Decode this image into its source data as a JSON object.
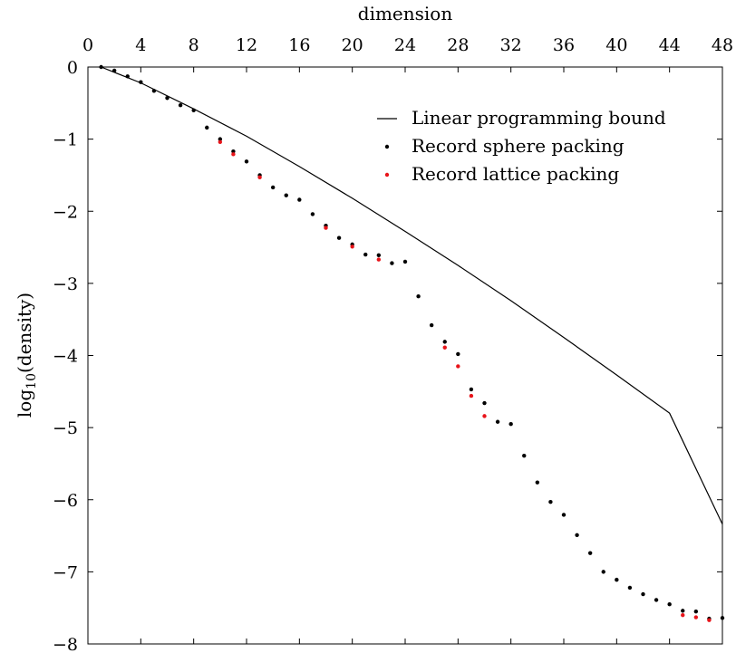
{
  "chart_data": {
    "type": "scatter",
    "xlabel": "dimension",
    "ylabel_main": "log",
    "ylabel_sub": "10",
    "ylabel_rest": "(density)",
    "xlim": [
      0,
      48
    ],
    "ylim": [
      -8,
      0
    ],
    "xticks": [
      0,
      4,
      8,
      12,
      16,
      20,
      24,
      28,
      32,
      36,
      40,
      44,
      48
    ],
    "yticks": [
      0,
      -1,
      -2,
      -3,
      -4,
      -5,
      -6,
      -7,
      -8
    ],
    "grid": false,
    "legend_position": "top-right",
    "series": [
      {
        "name": "Linear programming bound",
        "kind": "line",
        "color": "#000000",
        "points": [
          [
            1,
            0
          ],
          [
            4,
            -0.22
          ],
          [
            8,
            -0.58
          ],
          [
            12,
            -0.96
          ],
          [
            16,
            -1.38
          ],
          [
            20,
            -1.82
          ],
          [
            24,
            -2.28
          ],
          [
            28,
            -2.75
          ],
          [
            32,
            -3.24
          ],
          [
            36,
            -3.75
          ],
          [
            40,
            -4.27
          ],
          [
            44,
            -4.8
          ],
          [
            48,
            -6.34
          ]
        ]
      },
      {
        "name": "Record sphere packing",
        "kind": "scatter",
        "color": "#000000",
        "points": [
          [
            1,
            0
          ],
          [
            2,
            -0.05
          ],
          [
            3,
            -0.13
          ],
          [
            4,
            -0.21
          ],
          [
            5,
            -0.33
          ],
          [
            6,
            -0.43
          ],
          [
            7,
            -0.53
          ],
          [
            8,
            -0.6
          ],
          [
            9,
            -0.84
          ],
          [
            10,
            -1.0
          ],
          [
            11,
            -1.17
          ],
          [
            12,
            -1.31
          ],
          [
            13,
            -1.5
          ],
          [
            14,
            -1.67
          ],
          [
            15,
            -1.78
          ],
          [
            16,
            -1.84
          ],
          [
            17,
            -2.04
          ],
          [
            18,
            -2.2
          ],
          [
            19,
            -2.37
          ],
          [
            20,
            -2.46
          ],
          [
            21,
            -2.6
          ],
          [
            22,
            -2.61
          ],
          [
            23,
            -2.72
          ],
          [
            24,
            -2.7
          ],
          [
            25,
            -3.18
          ],
          [
            26,
            -3.58
          ],
          [
            27,
            -3.81
          ],
          [
            28,
            -3.98
          ],
          [
            29,
            -4.47
          ],
          [
            30,
            -4.66
          ],
          [
            31,
            -4.92
          ],
          [
            32,
            -4.95
          ],
          [
            33,
            -5.39
          ],
          [
            34,
            -5.76
          ],
          [
            35,
            -6.03
          ],
          [
            36,
            -6.21
          ],
          [
            37,
            -6.49
          ],
          [
            38,
            -6.74
          ],
          [
            39,
            -7.0
          ],
          [
            40,
            -7.11
          ],
          [
            41,
            -7.22
          ],
          [
            42,
            -7.31
          ],
          [
            43,
            -7.39
          ],
          [
            44,
            -7.45
          ],
          [
            45,
            -7.54
          ],
          [
            46,
            -7.55
          ],
          [
            47,
            -7.65
          ],
          [
            48,
            -7.64
          ]
        ]
      },
      {
        "name": "Record lattice packing",
        "kind": "scatter",
        "color": "#e8141a",
        "points": [
          [
            10,
            -1.04
          ],
          [
            11,
            -1.21
          ],
          [
            13,
            -1.53
          ],
          [
            18,
            -2.23
          ],
          [
            20,
            -2.49
          ],
          [
            22,
            -2.67
          ],
          [
            27,
            -3.89
          ],
          [
            28,
            -4.15
          ],
          [
            29,
            -4.56
          ],
          [
            30,
            -4.84
          ],
          [
            45,
            -7.6
          ],
          [
            46,
            -7.63
          ],
          [
            47,
            -7.67
          ]
        ]
      }
    ]
  }
}
